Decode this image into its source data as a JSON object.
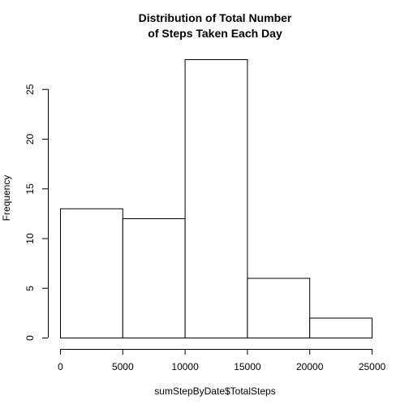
{
  "chart_data": {
    "type": "bar",
    "subtype": "histogram",
    "title_line1": "Distribution of Total Number",
    "title_line2": "of Steps Taken Each Day",
    "xlabel": "sumStepByDate$TotalSteps",
    "ylabel": "Frequency",
    "bins": [
      {
        "start": 0,
        "end": 5000,
        "count": 13
      },
      {
        "start": 5000,
        "end": 10000,
        "count": 12
      },
      {
        "start": 10000,
        "end": 15000,
        "count": 28
      },
      {
        "start": 15000,
        "end": 20000,
        "count": 6
      },
      {
        "start": 20000,
        "end": 25000,
        "count": 2
      }
    ],
    "x_ticks": [
      "0",
      "5000",
      "10000",
      "15000",
      "20000",
      "25000"
    ],
    "y_ticks": [
      "0",
      "5",
      "10",
      "15",
      "20",
      "25"
    ],
    "xlim": [
      0,
      25000
    ],
    "ylim": [
      0,
      28
    ],
    "grid": false,
    "colors": {
      "bar_fill": "#ffffff",
      "bar_stroke": "#000000",
      "axis": "#000000",
      "text": "#000000"
    }
  }
}
